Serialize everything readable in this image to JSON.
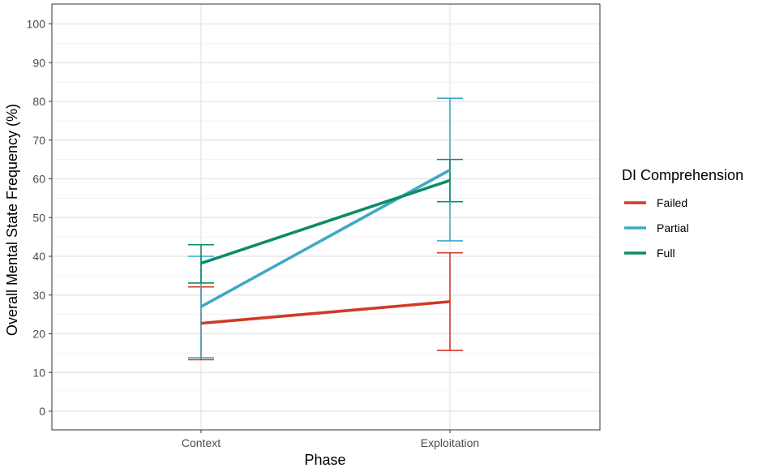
{
  "chart_data": {
    "type": "line",
    "xlabel": "Phase",
    "ylabel": "Overall Mental State Frequency (%)",
    "categories": [
      "Context",
      "Exploitation"
    ],
    "ylim": [
      -5,
      105
    ],
    "yticks": [
      0,
      10,
      20,
      30,
      40,
      50,
      60,
      70,
      80,
      90,
      100
    ],
    "grid": true,
    "error_bars": true,
    "legend": {
      "title": "DI Comprehension",
      "position": "right"
    },
    "series": [
      {
        "name": "Failed",
        "color": "#d03a27",
        "values": [
          22.7,
          28.3
        ],
        "lower": [
          13.3,
          15.7
        ],
        "upper": [
          32.1,
          40.9
        ]
      },
      {
        "name": "Partial",
        "color": "#3fa8c6",
        "values": [
          27.0,
          62.3
        ],
        "lower": [
          13.8,
          44.0
        ],
        "upper": [
          40.0,
          80.8
        ]
      },
      {
        "name": "Full",
        "color": "#0f8a69",
        "values": [
          38.2,
          59.6
        ],
        "lower": [
          33.1,
          54.1
        ],
        "upper": [
          43.0,
          65.0
        ]
      }
    ]
  }
}
